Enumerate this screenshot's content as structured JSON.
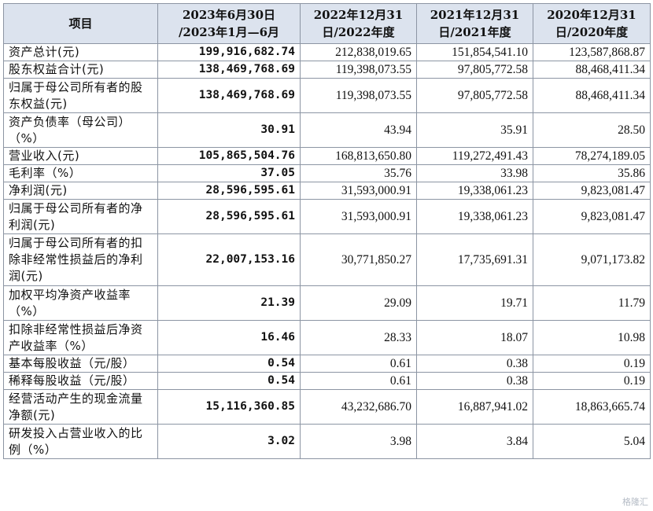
{
  "table": {
    "headers": [
      "项目",
      "2023年6月30日\n/2023年1月—6月",
      "2022年12月31\n日/2022年度",
      "2021年12月31\n日/2021年度",
      "2020年12月31\n日/2020年度"
    ],
    "rows": [
      {
        "label": "资产总计(元)",
        "cells": [
          "199,916,682.74",
          "212,838,019.65",
          "151,854,541.10",
          "123,587,868.87"
        ]
      },
      {
        "label": "股东权益合计(元)",
        "cells": [
          "138,469,768.69",
          "119,398,073.55",
          "97,805,772.58",
          "88,468,411.34"
        ]
      },
      {
        "label": "归属于母公司所有者的股东权益(元)",
        "cells": [
          "138,469,768.69",
          "119,398,073.55",
          "97,805,772.58",
          "88,468,411.34"
        ]
      },
      {
        "label": "资产负债率（母公司）（%）",
        "cells": [
          "30.91",
          "43.94",
          "35.91",
          "28.50"
        ]
      },
      {
        "label": "营业收入(元)",
        "cells": [
          "105,865,504.76",
          "168,813,650.80",
          "119,272,491.43",
          "78,274,189.05"
        ]
      },
      {
        "label": "毛利率（%）",
        "cells": [
          "37.05",
          "35.76",
          "33.98",
          "35.86"
        ]
      },
      {
        "label": "净利润(元)",
        "cells": [
          "28,596,595.61",
          "31,593,000.91",
          "19,338,061.23",
          "9,823,081.47"
        ]
      },
      {
        "label": "归属于母公司所有者的净利润(元)",
        "cells": [
          "28,596,595.61",
          "31,593,000.91",
          "19,338,061.23",
          "9,823,081.47"
        ]
      },
      {
        "label": "归属于母公司所有者的扣除非经常性损益后的净利润(元)",
        "cells": [
          "22,007,153.16",
          "30,771,850.27",
          "17,735,691.31",
          "9,071,173.82"
        ]
      },
      {
        "label": "加权平均净资产收益率（%）",
        "cells": [
          "21.39",
          "29.09",
          "19.71",
          "11.79"
        ]
      },
      {
        "label": "扣除非经常性损益后净资产收益率（%）",
        "cells": [
          "16.46",
          "28.33",
          "18.07",
          "10.98"
        ]
      },
      {
        "label": "基本每股收益（元/股）",
        "cells": [
          "0.54",
          "0.61",
          "0.38",
          "0.19"
        ]
      },
      {
        "label": "稀释每股收益（元/股）",
        "cells": [
          "0.54",
          "0.61",
          "0.38",
          "0.19"
        ]
      },
      {
        "label": "经营活动产生的现金流量净额(元)",
        "cells": [
          "15,116,360.85",
          "43,232,686.70",
          "16,887,941.02",
          "18,863,665.74"
        ]
      },
      {
        "label": "研发投入占营业收入的比例（%）",
        "cells": [
          "3.02",
          "3.98",
          "3.84",
          "5.04"
        ]
      }
    ]
  },
  "watermark": "格隆汇"
}
